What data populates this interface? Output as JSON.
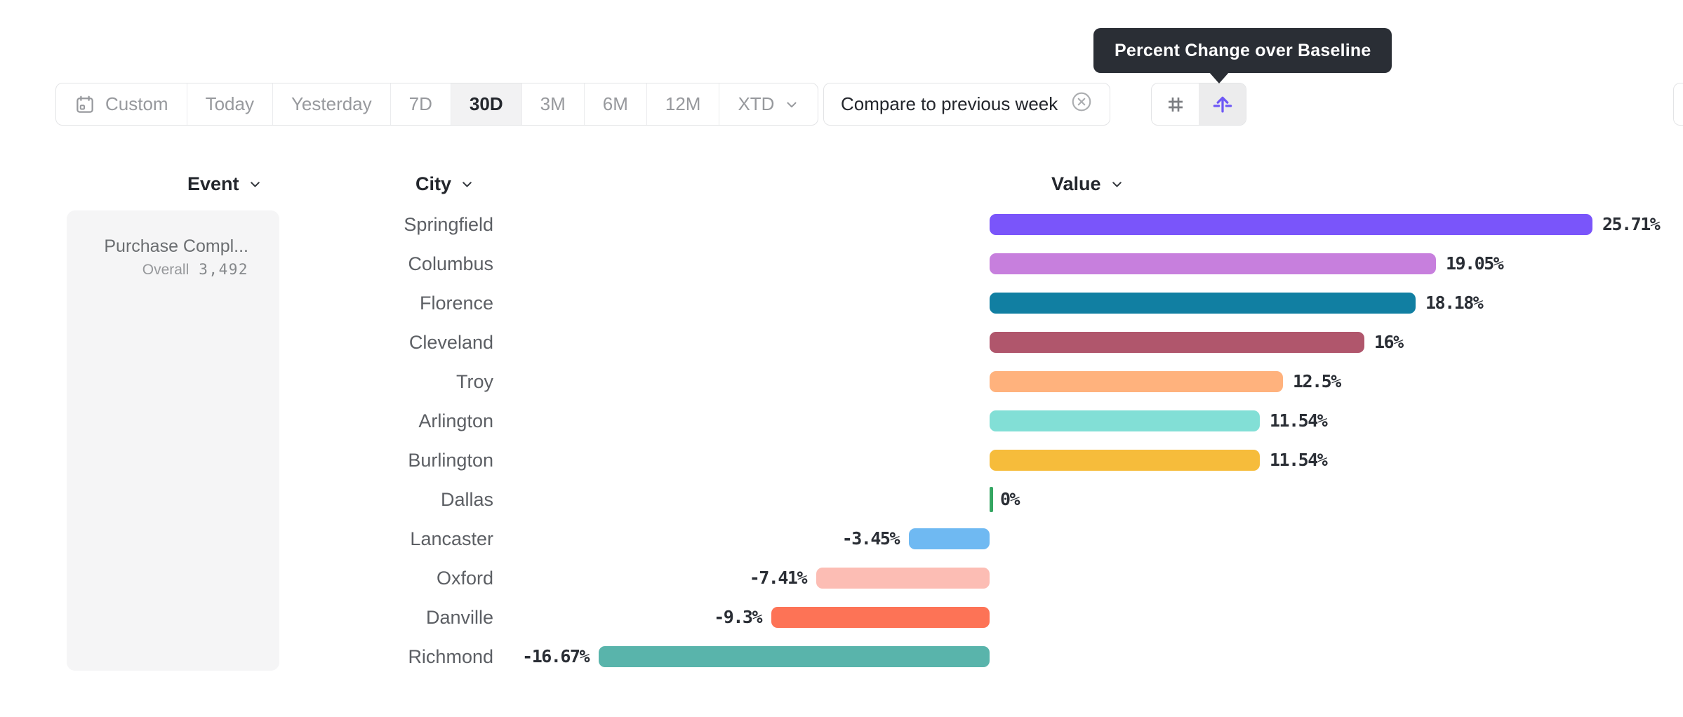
{
  "tooltip": {
    "text": "Percent Change over Baseline",
    "bg_color": "#2A2E35"
  },
  "toolbar": {
    "date_ranges": [
      {
        "label": "Custom",
        "icon": "calendar",
        "selected": false
      },
      {
        "label": "Today",
        "selected": false
      },
      {
        "label": "Yesterday",
        "selected": false
      },
      {
        "label": "7D",
        "selected": false
      },
      {
        "label": "30D",
        "selected": true
      },
      {
        "label": "3M",
        "selected": false
      },
      {
        "label": "6M",
        "selected": false
      },
      {
        "label": "12M",
        "selected": false
      },
      {
        "label": "XTD",
        "chevron": true,
        "selected": false
      }
    ],
    "compare": {
      "label": "Compare to previous week"
    },
    "view_toggles": [
      {
        "icon": "hash",
        "selected": false
      },
      {
        "icon": "percent-change-baseline",
        "selected": true,
        "accent": "#6E58F6"
      }
    ]
  },
  "columns": [
    {
      "key": "event",
      "label": "Event"
    },
    {
      "key": "city",
      "label": "City"
    },
    {
      "key": "value",
      "label": "Value"
    }
  ],
  "event_card": {
    "title": "Purchase Compl...",
    "overall_label": "Overall",
    "overall_value": "3,492"
  },
  "chart_data": {
    "type": "bar",
    "orientation": "horizontal",
    "title": "Percent Change over Baseline",
    "value_unit": "percent",
    "categories": [
      "Springfield",
      "Columbus",
      "Florence",
      "Cleveland",
      "Troy",
      "Arlington",
      "Burlington",
      "Dallas",
      "Lancaster",
      "Oxford",
      "Danville",
      "Richmond"
    ],
    "values": [
      25.71,
      19.05,
      18.18,
      16,
      12.5,
      11.54,
      11.54,
      0,
      -3.45,
      -7.41,
      -9.3,
      -16.67
    ],
    "labels": [
      "25.71%",
      "19.05%",
      "18.18%",
      "16%",
      "12.5%",
      "11.54%",
      "11.54%",
      "0%",
      "-3.45%",
      "-7.41%",
      "-9.3%",
      "-16.67%"
    ],
    "colors": [
      "#7A55FA",
      "#C77FDD",
      "#117FA2",
      "#B0566C",
      "#FFB27D",
      "#82DFD6",
      "#F6BC3B",
      "#35A662",
      "#6FB9F2",
      "#FCBDB4",
      "#FD7356",
      "#59B4AB"
    ],
    "xlim": [
      -16.67,
      25.71
    ],
    "baseline": 0,
    "grid": false,
    "legend": false
  }
}
